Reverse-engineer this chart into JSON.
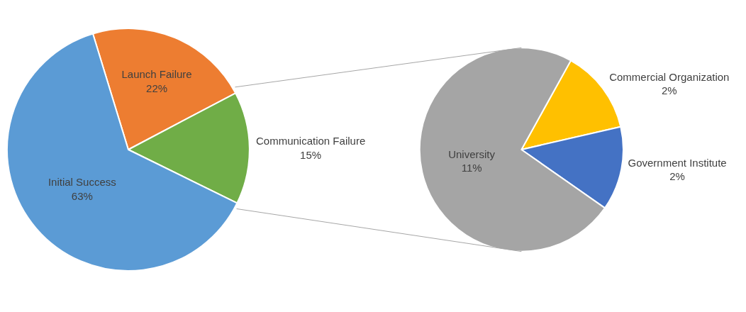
{
  "chart_data": [
    {
      "type": "pie",
      "categories": [
        "Launch Failure",
        "Communication Failure",
        "Initial Success"
      ],
      "values": [
        22,
        15,
        63
      ],
      "colors": [
        "#ed7d31",
        "#70ad47",
        "#5b9bd5"
      ],
      "value_labels": [
        "22%",
        "15%",
        "63%"
      ]
    },
    {
      "type": "pie",
      "categories": [
        "Commercial Organization",
        "Government Institute",
        "University"
      ],
      "values": [
        2,
        2,
        11
      ],
      "colors": [
        "#ffc000",
        "#4472c4",
        "#a5a5a5"
      ],
      "value_labels": [
        "2%",
        "2%",
        "11%"
      ]
    }
  ]
}
